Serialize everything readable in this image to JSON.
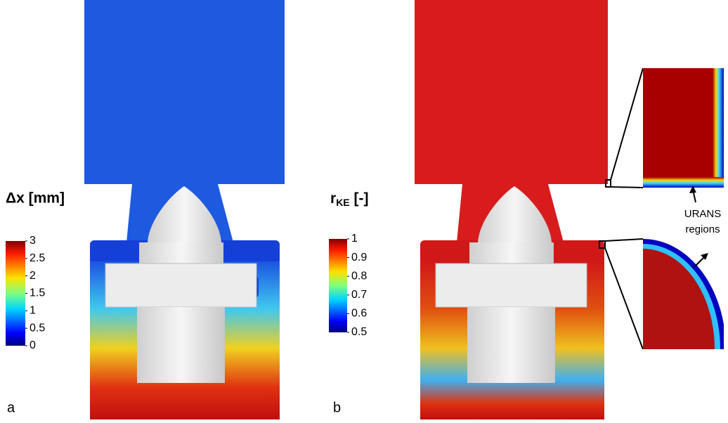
{
  "panels": [
    {
      "label": "a",
      "colorbar": {
        "title": "Δx [mm]",
        "range": [
          0,
          3
        ],
        "ticks": [
          0,
          0.5,
          1,
          1.5,
          2,
          2.5,
          3
        ]
      }
    },
    {
      "label": "b",
      "colorbar": {
        "title": "r",
        "title_subscript": "KE",
        "title_unit": " [-]",
        "range": [
          0.5,
          1
        ],
        "ticks": [
          0.5,
          0.6,
          0.7,
          0.8,
          0.9,
          1
        ]
      }
    }
  ],
  "annotation": [
    "URANS",
    "regions"
  ]
}
